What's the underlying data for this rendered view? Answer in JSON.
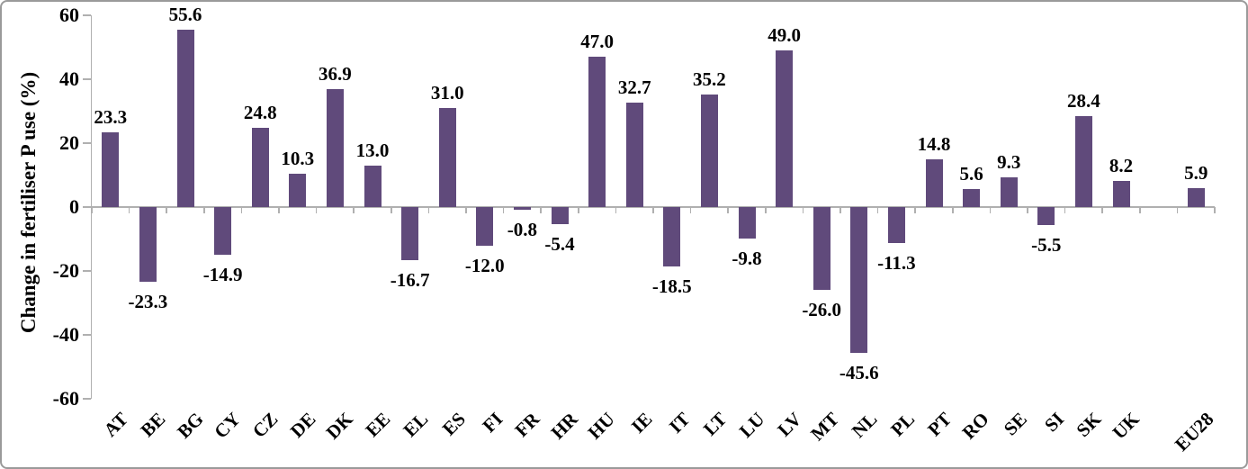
{
  "chart_data": {
    "type": "bar",
    "title": "",
    "xlabel": "",
    "ylabel": "Change in fertiliser P use (%)",
    "ylim": [
      -60,
      60
    ],
    "yticks": [
      60,
      40,
      20,
      0,
      -20,
      -40,
      -60
    ],
    "grid": false,
    "legend_position": "none",
    "bar_color": "#604a7b",
    "axis_color": "#b0b0b0",
    "text_color": "#000000",
    "value_label_decimals": 1,
    "gap_slot_before_last_category": true,
    "categories": [
      "AT",
      "BE",
      "BG",
      "CY",
      "CZ",
      "DE",
      "DK",
      "EE",
      "EL",
      "ES",
      "FI",
      "FR",
      "HR",
      "HU",
      "IE",
      "IT",
      "LT",
      "LU",
      "LV",
      "MT",
      "NL",
      "PL",
      "PT",
      "RO",
      "SE",
      "SI",
      "SK",
      "UK",
      "EU28"
    ],
    "values": [
      23.3,
      -23.3,
      55.6,
      -14.9,
      24.8,
      10.3,
      36.9,
      13.0,
      -16.7,
      31.0,
      -12.0,
      -0.8,
      -5.4,
      47.0,
      32.7,
      -18.5,
      35.2,
      -9.8,
      49.0,
      -26.0,
      -45.6,
      -11.3,
      14.8,
      5.6,
      9.3,
      -5.5,
      28.4,
      8.2,
      5.9
    ]
  }
}
